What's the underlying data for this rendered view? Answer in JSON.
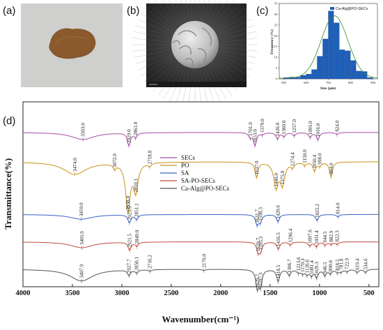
{
  "panels": {
    "a": "(a)",
    "b": "(b)",
    "c": "(c)",
    "d": "(d)"
  },
  "photo_colors": {
    "background": "#cfcfcd",
    "sample": "#8a5a2c"
  },
  "sem_colors": {
    "background": "#2e2e2e",
    "particle": "#c8c8c8"
  },
  "chart_data": [
    {
      "type": "bar",
      "panel": "c",
      "legend": [
        "Ca-Alg@PO-SECs"
      ],
      "legend_position": "top-right",
      "xlabel": "Size (μm)",
      "ylabel": "Frequency (%)",
      "x_ticks": [
        500,
        600,
        700,
        800,
        900
      ],
      "y_ticks": [
        0,
        5,
        10,
        15,
        20,
        25,
        30,
        35
      ],
      "xlim": [
        480,
        920
      ],
      "ylim": [
        0,
        35
      ],
      "bin_width": 25,
      "categories": [
        500,
        525,
        550,
        575,
        600,
        625,
        650,
        675,
        700,
        725,
        750,
        775,
        800,
        825,
        850,
        875
      ],
      "values": [
        0.6,
        0.8,
        0.7,
        1.6,
        2.2,
        4.3,
        10.5,
        18.5,
        31.5,
        26.0,
        13.5,
        13.0,
        8.5,
        3.6,
        3.4,
        0.6
      ],
      "bar_color": "#1f5fb8",
      "fit_color": "#2e8b2e"
    },
    {
      "type": "line",
      "panel": "d",
      "xlabel": "Wavenumber(cm⁻¹)",
      "ylabel": "Transmittance(%)",
      "xlim": [
        4000,
        400
      ],
      "x_ticks": [
        4000,
        3500,
        3000,
        2500,
        2000,
        1500,
        1000,
        500
      ],
      "legend_position": "center-left",
      "series": [
        {
          "name": "SECs",
          "color": "#a64ca6",
          "offset": 3.95,
          "peaks": [
            {
              "x": 3393.0,
              "label": "3393.0",
              "depth": 0.18
            },
            {
              "x": 2929.0,
              "label": "2929.0",
              "depth": 0.32
            },
            {
              "x": 2861.0,
              "label": "2861.0",
              "depth": 0.12
            },
            {
              "x": 1701.0,
              "label": "1701.0",
              "depth": 0.12
            },
            {
              "x": 1653.0,
              "label": "1653.0",
              "depth": 0.32
            },
            {
              "x": 1579.0,
              "label": "1579.0",
              "depth": 0.05
            },
            {
              "x": 1426.0,
              "label": "1426.0",
              "depth": 0.16
            },
            {
              "x": 1360.0,
              "label": "1360.0",
              "depth": 0.1
            },
            {
              "x": 1257.0,
              "label": "1257.0",
              "depth": 0.08
            },
            {
              "x": 1095.0,
              "label": "1095.0",
              "depth": 0.12
            },
            {
              "x": 1016.0,
              "label": "1016.0",
              "depth": 0.18
            },
            {
              "x": 824.0,
              "label": "824.0",
              "depth": 0.05
            }
          ]
        },
        {
          "name": "PO",
          "color": "#c9901a",
          "offset": 3.2,
          "peaks": [
            {
              "x": 3474.0,
              "label": "3474.0",
              "depth": 0.32
            },
            {
              "x": 3072.0,
              "label": "3072.0",
              "depth": 0.12
            },
            {
              "x": 2938.0,
              "label": "2938.0",
              "depth": 1.2
            },
            {
              "x": 2859.1,
              "label": "2859.1",
              "depth": 0.7
            },
            {
              "x": 2718.8,
              "label": "2718.8",
              "depth": 0.08
            },
            {
              "x": 1637.0,
              "label": "1637.0",
              "depth": 0.38
            },
            {
              "x": 1440.0,
              "label": "1440.0",
              "depth": 0.62
            },
            {
              "x": 1375.0,
              "label": "1375.0",
              "depth": 0.55
            },
            {
              "x": 1274.4,
              "label": "1274.4",
              "depth": 0.12
            },
            {
              "x": 1150.0,
              "label": "1150.0",
              "depth": 0.08
            },
            {
              "x": 1050.4,
              "label": "1050.4",
              "depth": 0.22
            },
            {
              "x": 998.0,
              "label": "998.0",
              "depth": 0.1
            },
            {
              "x": 884.0,
              "label": "884.0",
              "depth": 0.38
            }
          ]
        },
        {
          "name": "SA",
          "color": "#3a62c4",
          "offset": 1.85,
          "peaks": [
            {
              "x": 3410.0,
              "label": "3410.0",
              "depth": 0.12
            },
            {
              "x": 2923.5,
              "label": "2923.5",
              "depth": 0.2
            },
            {
              "x": 2851.1,
              "label": "2851.1",
              "depth": 0.12
            },
            {
              "x": 1631.7,
              "label": "1631.7",
              "depth": 0.25
            },
            {
              "x": 1598.3,
              "label": "1598.3",
              "depth": 0.18
            },
            {
              "x": 1420.6,
              "label": "1420.6",
              "depth": 0.18
            },
            {
              "x": 1025.2,
              "label": "1025.2",
              "depth": 0.15
            },
            {
              "x": 814.0,
              "label": "814.0",
              "depth": 0.06
            }
          ]
        },
        {
          "name": "SA-PO-SECs",
          "color": "#c0473a",
          "offset": 1.15,
          "peaks": [
            {
              "x": 3405.9,
              "label": "3405.9",
              "depth": 0.15
            },
            {
              "x": 2921.5,
              "label": "2921.5",
              "depth": 0.2
            },
            {
              "x": 2849.0,
              "label": "2849.0",
              "depth": 0.1
            },
            {
              "x": 1620.7,
              "label": "1620.7",
              "depth": 0.25
            },
            {
              "x": 1595.3,
              "label": "1595.3",
              "depth": 0.2
            },
            {
              "x": 1416.5,
              "label": "1416.5",
              "depth": 0.18
            },
            {
              "x": 1296.4,
              "label": "1296.4",
              "depth": 0.08
            },
            {
              "x": 1097.6,
              "label": "1097.6",
              "depth": 0.1
            },
            {
              "x": 1031.4,
              "label": "1031.4",
              "depth": 0.12
            },
            {
              "x": 944.5,
              "label": "944.5",
              "depth": 0.08
            },
            {
              "x": 882.9,
              "label": "882.9",
              "depth": 0.06
            },
            {
              "x": 822.3,
              "label": "822.3",
              "depth": 0.06
            }
          ]
        },
        {
          "name": "Ca-Alg@PO-SECs",
          "color": "#555555",
          "offset": 0.45,
          "peaks": [
            {
              "x": 3407.9,
              "label": "3407.9",
              "depth": 0.3
            },
            {
              "x": 2927.7,
              "label": "2927.7",
              "depth": 0.14
            },
            {
              "x": 2850.1,
              "label": "2850.1",
              "depth": 0.08
            },
            {
              "x": 2716.2,
              "label": "2716.2",
              "depth": 0.04
            },
            {
              "x": 2170.0,
              "label": "2170.0",
              "depth": 0.03
            },
            {
              "x": 1629.7,
              "label": "1629.7",
              "depth": 0.45
            },
            {
              "x": 1597.3,
              "label": "1597.3",
              "depth": 0.4
            },
            {
              "x": 1418.5,
              "label": "1418.5",
              "depth": 0.3
            },
            {
              "x": 1306.7,
              "label": "1306.7",
              "depth": 0.15
            },
            {
              "x": 1213.6,
              "label": "1213.6",
              "depth": 0.08
            },
            {
              "x": 1170.3,
              "label": "1170.3",
              "depth": 0.1
            },
            {
              "x": 1126.6,
              "label": "1126.6",
              "depth": 0.12
            },
            {
              "x": 1081.4,
              "label": "1081.4",
              "depth": 0.15
            },
            {
              "x": 1029.3,
              "label": "1029.3",
              "depth": 0.2
            },
            {
              "x": 946.5,
              "label": "946.5",
              "depth": 0.15
            },
            {
              "x": 890.6,
              "label": "890.6",
              "depth": 0.1
            },
            {
              "x": 818.5,
              "label": "818.5",
              "depth": 0.08
            },
            {
              "x": 781.8,
              "label": "781.8",
              "depth": 0.06
            },
            {
              "x": 722.9,
              "label": "722.9",
              "depth": 0.06
            },
            {
              "x": 619.4,
              "label": "619.4",
              "depth": 0.08
            },
            {
              "x": 534.6,
              "label": "534.6",
              "depth": 0.08
            }
          ]
        }
      ]
    }
  ]
}
